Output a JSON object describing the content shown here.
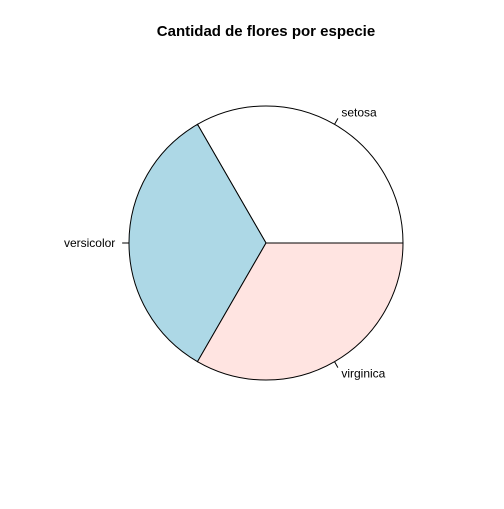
{
  "chart_data": {
    "type": "pie",
    "title": "Cantidad de flores por especie",
    "categories": [
      "setosa",
      "versicolor",
      "virginica"
    ],
    "values": [
      50,
      50,
      50
    ],
    "colors": [
      "#FFFFFF",
      "#ADD8E6",
      "#FFE4E1"
    ],
    "start_angle_deg": 0,
    "direction": "counterclockwise",
    "legend": "none",
    "grid": false
  }
}
